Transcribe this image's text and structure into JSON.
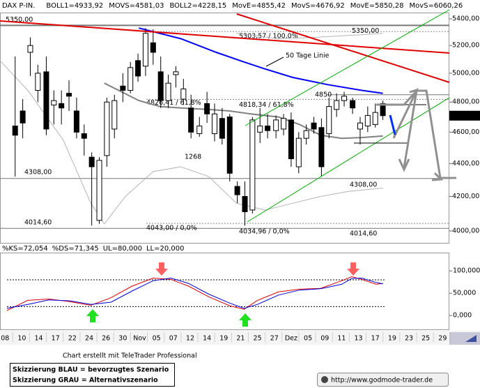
{
  "chart_data": {
    "type": "candlestick",
    "title": "DAX P-IN.",
    "legend": [
      {
        "label": "BOLL1=4933,92",
        "color": "#a0a0a0"
      },
      {
        "label": "MOVS=4581,03",
        "color": "#a0a0a0"
      },
      {
        "label": "BOLL2=4228,15",
        "color": "#a0a0a0"
      },
      {
        "label": "MovE=4855,42",
        "color": "#0000ff"
      },
      {
        "label": "MovS=4676,92",
        "color": "#00c8ff"
      },
      {
        "label": "MovE=5850,28",
        "color": "#ff0000"
      },
      {
        "label": "MovS=6060,26",
        "color": "#ff00ff"
      }
    ],
    "log_scale": true,
    "xlim": [
      -0.6,
      52.8
    ],
    "ylim": [
      3933,
      5448
    ],
    "xticks": [
      {
        "value": 0,
        "label": "08"
      },
      {
        "value": 2,
        "label": "10"
      },
      {
        "value": 4,
        "label": "14"
      },
      {
        "value": 6,
        "label": "17"
      },
      {
        "value": 8,
        "label": "22"
      },
      {
        "value": 10,
        "label": "24"
      },
      {
        "value": 12,
        "label": "26"
      },
      {
        "value": 14,
        "label": "30"
      },
      {
        "value": 16,
        "label": "Nov"
      },
      {
        "value": 18,
        "label": "05"
      },
      {
        "value": 20,
        "label": "07"
      },
      {
        "value": 22,
        "label": "12"
      },
      {
        "value": 24,
        "label": "14"
      },
      {
        "value": 26,
        "label": "19"
      },
      {
        "value": 28,
        "label": "21"
      },
      {
        "value": 30,
        "label": "25"
      },
      {
        "value": 32,
        "label": "27"
      },
      {
        "value": 34,
        "label": "Dez"
      },
      {
        "value": 36,
        "label": "05"
      },
      {
        "value": 38,
        "label": "09"
      },
      {
        "value": 40,
        "label": "11"
      },
      {
        "value": 42,
        "label": "13"
      },
      {
        "value": 44,
        "label": "17"
      },
      {
        "value": 46,
        "label": "19"
      },
      {
        "value": 48,
        "label": "23"
      },
      {
        "value": 50,
        "label": "25"
      },
      {
        "value": 52,
        "label": "29"
      }
    ],
    "yticks": [
      {
        "value": 5400,
        "label": "5400,00"
      },
      {
        "value": 5200,
        "label": "5200,00"
      },
      {
        "value": 5000,
        "label": "5000,00"
      },
      {
        "value": 4800,
        "label": "4800,00"
      },
      {
        "value": 4600,
        "label": "4600,00"
      },
      {
        "value": 4400,
        "label": "4400,00"
      },
      {
        "value": 4200,
        "label": "4200,00"
      },
      {
        "value": 4000,
        "label": "4000,00"
      }
    ],
    "candles": {
      "x": [
        1.2,
        2.1,
        3.0,
        3.9,
        4.9,
        5.8,
        6.7,
        7.6,
        8.5,
        9.4,
        10.3,
        11.2,
        12.1,
        13.0,
        14.0,
        14.9,
        15.8,
        16.7,
        17.6,
        18.5,
        19.4,
        20.3,
        21.2,
        22.1,
        23.1,
        24.0,
        24.9,
        25.8,
        26.7,
        27.6,
        28.5,
        29.4,
        30.3,
        31.2,
        32.2,
        33.1,
        34.0,
        34.9,
        35.8,
        36.7,
        37.6,
        38.5,
        39.4,
        40.3,
        41.3,
        42.2,
        43.1,
        44.0,
        44.9
      ],
      "open": [
        4640,
        4740,
        5150,
        4880,
        5010,
        4780,
        4790,
        4860,
        4740,
        4590,
        4440,
        4060,
        4450,
        4620,
        4910,
        4880,
        5090,
        5050,
        5220,
        5010,
        4810,
        4990,
        4820,
        4760,
        4590,
        4790,
        4590,
        4690,
        4700,
        4260,
        4200,
        4120,
        4600,
        4640,
        4610,
        4620,
        4680,
        4380,
        4560,
        4660,
        4630,
        4590,
        4750,
        4810,
        4810,
        4620,
        4640,
        4650,
        4790
      ],
      "high": [
        5120,
        4820,
        5260,
        5060,
        5120,
        4880,
        4880,
        4950,
        4830,
        4650,
        4470,
        4440,
        4830,
        4850,
        5000,
        5080,
        5140,
        5330,
        5320,
        5120,
        4990,
        5050,
        4960,
        4850,
        4700,
        4870,
        4790,
        4760,
        4720,
        4290,
        4290,
        4700,
        4760,
        4720,
        4710,
        4720,
        4730,
        4600,
        4650,
        4700,
        4690,
        4830,
        4860,
        4870,
        4830,
        4700,
        4770,
        4790,
        4810
      ],
      "low": [
        4320,
        4560,
        4980,
        4800,
        4580,
        4650,
        4650,
        4740,
        4560,
        4450,
        4030,
        4040,
        4380,
        4560,
        4800,
        4860,
        4940,
        4980,
        5060,
        4760,
        4760,
        4900,
        4780,
        4560,
        4570,
        4660,
        4540,
        4520,
        4290,
        4160,
        4030,
        4100,
        4530,
        4560,
        4560,
        4580,
        4380,
        4340,
        4520,
        4590,
        4320,
        4560,
        4700,
        4770,
        4720,
        4520,
        4600,
        4630,
        4680
      ],
      "close": [
        4580,
        4660,
        5200,
        5000,
        4620,
        4810,
        4760,
        4840,
        4600,
        4560,
        4380,
        4420,
        4800,
        4810,
        4880,
        5040,
        4980,
        5290,
        5150,
        4810,
        4930,
        5010,
        4890,
        4600,
        4640,
        4720,
        4720,
        4560,
        4340,
        4210,
        4110,
        4680,
        4640,
        4610,
        4680,
        4690,
        4430,
        4560,
        4610,
        4620,
        4380,
        4770,
        4810,
        4840,
        4760,
        4660,
        4710,
        4730,
        4708.36
      ]
    },
    "lines": [
      {
        "color": "#0000ff",
        "width": 2,
        "x": [
          15.9,
          20.9,
          25.1,
          28.4,
          30.9,
          34.2,
          38.3,
          42.4,
          44.9
        ],
        "values": [
          5330,
          5250,
          5150,
          5080,
          5030,
          4970,
          4920,
          4880,
          4860
        ]
      },
      {
        "color": "#808080",
        "width": 2,
        "x": [
          11.8,
          13.5,
          15.9,
          18.4,
          20.9,
          24.2,
          26.7,
          29.2,
          32.5,
          35.0,
          37.5,
          40.0,
          42.4,
          44.9
        ],
        "values": [
          4930,
          4880,
          4810,
          4770,
          4760,
          4750,
          4740,
          4720,
          4700,
          4650,
          4580,
          4560,
          4565,
          4575
        ]
      },
      {
        "color": "#b4b4b4",
        "width": 1,
        "x": [
          -0.6,
          2.7,
          6.9,
          10.2,
          11.8,
          14.3,
          17.6,
          20.9,
          24.2,
          27.5,
          30.9,
          34.2,
          37.5,
          40.8,
          44.9
        ],
        "values": [
          5090,
          4880,
          4550,
          4160,
          4040,
          4200,
          4350,
          4380,
          4320,
          4160,
          4120,
          4160,
          4200,
          4230,
          4250
        ]
      },
      {
        "color": "#b4b4b4",
        "width": 1,
        "x": [
          27.5,
          32.5,
          36.7,
          42.4,
          44.9
        ],
        "values": [
          5290,
          5250,
          5260,
          5280,
          5290
        ]
      }
    ],
    "levels": [
      {
        "value": 5350,
        "label": "5350,00"
      },
      {
        "value": 5350,
        "label": "5350,00"
      },
      {
        "value": 5303.57,
        "label": "5303,57 / 100,0%"
      },
      {
        "value": 4818.34,
        "label": "4818,34 / 61,8%"
      },
      {
        "value": 4826.41,
        "label": "4826,41 / 61,8%"
      },
      {
        "value": 4850,
        "label": "4850"
      },
      {
        "value": 4308,
        "label": "4308,00"
      },
      {
        "value": 4308,
        "label": "4308,00"
      },
      {
        "value": 4014.6,
        "label": "4014,60"
      },
      {
        "value": 4014.6,
        "label": "4014,60"
      },
      {
        "value": 4043,
        "label": "4043,00 / 0,0%"
      },
      {
        "value": 4034.96,
        "label": "4034,96 / 0,0%"
      }
    ],
    "annotations": [
      "1268",
      "50 Tage Linie"
    ],
    "last_price": {
      "value": 4708.36,
      "label": "4708,36"
    },
    "oscillator": {
      "type": "line",
      "labels": [
        {
          "text": "%KS=72,054",
          "color": "#e00000"
        },
        {
          "text": "%DS=71,345",
          "color": "#0000e0"
        },
        {
          "text": "UL=80,000",
          "color": "#000000"
        },
        {
          "text": "LL=20,000",
          "color": "#000000"
        }
      ],
      "ylim": [
        -31,
        141
      ],
      "yticks": [
        {
          "value": 100,
          "label": "100,000"
        },
        {
          "value": 50,
          "label": "50,000"
        },
        {
          "value": 0,
          "label": "0,000"
        }
      ],
      "ul": 80,
      "ll": 20,
      "x": [
        0.2,
        2.7,
        5.2,
        7.7,
        10.2,
        12.6,
        15.1,
        17.6,
        19.7,
        21.8,
        24.2,
        26.7,
        28.4,
        30.0,
        32.5,
        35.0,
        37.5,
        40.0,
        41.2,
        42.4,
        44.1,
        44.9
      ],
      "series": [
        {
          "color": "#e00000",
          "values": [
            11,
            34,
            37,
            31,
            23,
            40,
            66,
            84,
            81,
            66,
            42,
            22,
            14,
            34,
            53,
            59,
            61,
            78,
            87,
            81,
            70,
            72
          ]
        },
        {
          "color": "#0000e0",
          "values": [
            16,
            25,
            35,
            33,
            25,
            30,
            55,
            78,
            84,
            72,
            48,
            28,
            16,
            25,
            46,
            57,
            60,
            70,
            83,
            84,
            74,
            71
          ]
        }
      ]
    }
  },
  "footer": {
    "credit": "Chart erstellt mit TeleTrader Professional",
    "scenario_blue": "Skizzierung BLAU = bevorzugtes Szenario",
    "scenario_gray": "Skizzierung GRAU = Alternativszenario",
    "url": "http://www.godmode-trader.de"
  }
}
